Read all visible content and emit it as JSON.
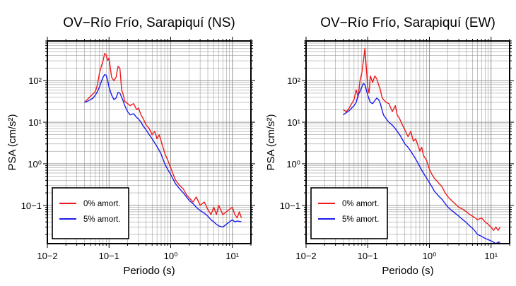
{
  "chart_data": [
    {
      "type": "line",
      "title": "OV−Río Frío, Sarapiquí (NS)",
      "xlabel": "Periodo (s)",
      "ylabel": "PSA (cm/s²)",
      "x_scale": "log",
      "y_scale": "log",
      "xlim": [
        0.01,
        20
      ],
      "ylim": [
        0.012,
        900
      ],
      "grid": true,
      "legend_position": "bottom-left",
      "x_tick_labels": [
        "10−2",
        "10−1",
        "10⁰",
        "10¹"
      ],
      "y_tick_labels": [
        "10−1",
        "10⁰",
        "10¹",
        "10²"
      ],
      "series": [
        {
          "name": "0% amort.",
          "color": "#ee1c1c",
          "x": [
            0.04,
            0.045,
            0.05,
            0.055,
            0.06,
            0.065,
            0.07,
            0.075,
            0.08,
            0.085,
            0.09,
            0.095,
            0.1,
            0.105,
            0.11,
            0.12,
            0.13,
            0.14,
            0.15,
            0.16,
            0.17,
            0.18,
            0.2,
            0.22,
            0.25,
            0.28,
            0.3,
            0.33,
            0.36,
            0.4,
            0.45,
            0.5,
            0.55,
            0.6,
            0.65,
            0.7,
            0.75,
            0.8,
            0.9,
            1.0,
            1.1,
            1.2,
            1.4,
            1.6,
            1.8,
            2.0,
            2.3,
            2.6,
            3.0,
            3.5,
            4.0,
            4.5,
            5.0,
            5.5,
            6.0,
            7.0,
            8.0,
            9.0,
            10.0,
            11.0,
            12.0,
            13.0,
            14.0
          ],
          "values": [
            30,
            36,
            42,
            48,
            55,
            80,
            150,
            220,
            300,
            450,
            420,
            300,
            350,
            200,
            120,
            100,
            120,
            220,
            200,
            60,
            45,
            32,
            28,
            25,
            28,
            20,
            22,
            15,
            12,
            8.5,
            7,
            5,
            6,
            4,
            5,
            3.5,
            2.5,
            1.8,
            1.2,
            0.8,
            0.55,
            0.4,
            0.3,
            0.25,
            0.18,
            0.15,
            0.12,
            0.16,
            0.1,
            0.12,
            0.08,
            0.06,
            0.09,
            0.06,
            0.1,
            0.06,
            0.07,
            0.08,
            0.09,
            0.06,
            0.05,
            0.07,
            0.05
          ]
        },
        {
          "name": "5% amort.",
          "color": "#1c1cee",
          "x": [
            0.04,
            0.045,
            0.05,
            0.055,
            0.06,
            0.065,
            0.07,
            0.075,
            0.08,
            0.085,
            0.09,
            0.095,
            0.1,
            0.11,
            0.12,
            0.13,
            0.14,
            0.15,
            0.16,
            0.17,
            0.18,
            0.2,
            0.22,
            0.25,
            0.28,
            0.3,
            0.33,
            0.36,
            0.4,
            0.45,
            0.5,
            0.55,
            0.6,
            0.65,
            0.7,
            0.75,
            0.8,
            0.9,
            1.0,
            1.1,
            1.2,
            1.4,
            1.6,
            1.8,
            2.0,
            2.3,
            2.6,
            3.0,
            3.5,
            4.0,
            4.5,
            5.0,
            5.5,
            6.0,
            7.0,
            8.0,
            9.0,
            10.0,
            11.0,
            12.0,
            13.0,
            14.0
          ],
          "values": [
            30,
            32,
            35,
            38,
            45,
            55,
            70,
            95,
            120,
            140,
            135,
            100,
            70,
            45,
            35,
            38,
            52,
            50,
            40,
            32,
            25,
            18,
            15,
            16,
            13,
            12,
            10,
            8,
            6.5,
            5,
            4,
            3.2,
            2.6,
            2.1,
            1.7,
            1.3,
            1.0,
            0.72,
            0.55,
            0.42,
            0.33,
            0.25,
            0.2,
            0.16,
            0.13,
            0.11,
            0.09,
            0.075,
            0.065,
            0.055,
            0.045,
            0.04,
            0.035,
            0.032,
            0.03,
            0.035,
            0.04,
            0.045,
            0.04,
            0.042,
            0.041,
            0.04
          ]
        }
      ]
    },
    {
      "type": "line",
      "title": "OV−Río Frío, Sarapiquí (EW)",
      "xlabel": "Periodo (s)",
      "ylabel": "PSA (cm/s²)",
      "x_scale": "log",
      "y_scale": "log",
      "xlim": [
        0.01,
        20
      ],
      "ylim": [
        0.012,
        900
      ],
      "grid": true,
      "legend_position": "bottom-left",
      "x_tick_labels": [
        "10−2",
        "10−1",
        "10⁰",
        "10¹"
      ],
      "y_tick_labels": [
        "10−1",
        "10⁰",
        "10¹",
        "10²"
      ],
      "series": [
        {
          "name": "0% amort.",
          "color": "#ee1c1c",
          "x": [
            0.04,
            0.045,
            0.05,
            0.055,
            0.06,
            0.065,
            0.07,
            0.075,
            0.08,
            0.085,
            0.09,
            0.095,
            0.1,
            0.105,
            0.11,
            0.12,
            0.13,
            0.14,
            0.15,
            0.16,
            0.17,
            0.18,
            0.2,
            0.22,
            0.25,
            0.28,
            0.3,
            0.33,
            0.36,
            0.4,
            0.45,
            0.5,
            0.55,
            0.6,
            0.65,
            0.7,
            0.75,
            0.8,
            0.9,
            1.0,
            1.1,
            1.2,
            1.4,
            1.6,
            1.8,
            2.0,
            2.3,
            2.6,
            3.0,
            3.5,
            4.0,
            4.5,
            5.0,
            5.5,
            6.0,
            7.0,
            8.0,
            9.0,
            10.0,
            11.0,
            12.0,
            13.0,
            14.0
          ],
          "values": [
            20,
            18,
            22,
            28,
            35,
            60,
            40,
            100,
            150,
            300,
            600,
            200,
            70,
            50,
            130,
            90,
            130,
            110,
            80,
            60,
            40,
            35,
            30,
            28,
            18,
            25,
            15,
            12,
            9,
            6.5,
            4.5,
            6,
            3.5,
            4,
            2.8,
            2.0,
            2.5,
            1.6,
            1.2,
            0.75,
            0.55,
            0.45,
            0.35,
            0.28,
            0.2,
            0.16,
            0.13,
            0.11,
            0.09,
            0.08,
            0.07,
            0.06,
            0.055,
            0.05,
            0.045,
            0.05,
            0.04,
            0.035,
            0.03,
            0.025,
            0.03,
            0.025,
            0.03
          ]
        },
        {
          "name": "5% amort.",
          "color": "#1c1cee",
          "x": [
            0.04,
            0.045,
            0.05,
            0.055,
            0.06,
            0.065,
            0.07,
            0.075,
            0.08,
            0.085,
            0.09,
            0.095,
            0.1,
            0.11,
            0.12,
            0.13,
            0.14,
            0.15,
            0.16,
            0.17,
            0.18,
            0.2,
            0.22,
            0.25,
            0.28,
            0.3,
            0.33,
            0.36,
            0.4,
            0.45,
            0.5,
            0.55,
            0.6,
            0.65,
            0.7,
            0.75,
            0.8,
            0.9,
            1.0,
            1.1,
            1.2,
            1.4,
            1.6,
            1.8,
            2.0,
            2.3,
            2.6,
            3.0,
            3.5,
            4.0,
            4.5,
            5.0,
            5.5,
            6.0,
            7.0,
            8.0,
            9.0,
            10.0,
            11.0,
            12.0,
            13.0,
            14.0
          ],
          "values": [
            15,
            17,
            19,
            22,
            25,
            30,
            45,
            55,
            70,
            85,
            80,
            60,
            45,
            30,
            28,
            33,
            38,
            35,
            28,
            20,
            15,
            12,
            10,
            8.5,
            7,
            6,
            5,
            4,
            3,
            2.5,
            2.0,
            1.6,
            1.3,
            1.05,
            0.85,
            0.7,
            0.6,
            0.45,
            0.35,
            0.28,
            0.22,
            0.17,
            0.14,
            0.11,
            0.09,
            0.075,
            0.065,
            0.055,
            0.045,
            0.038,
            0.032,
            0.028,
            0.024,
            0.02,
            0.018,
            0.016,
            0.015,
            0.014,
            0.013,
            0.012,
            0.013,
            0.013
          ]
        }
      ]
    }
  ]
}
